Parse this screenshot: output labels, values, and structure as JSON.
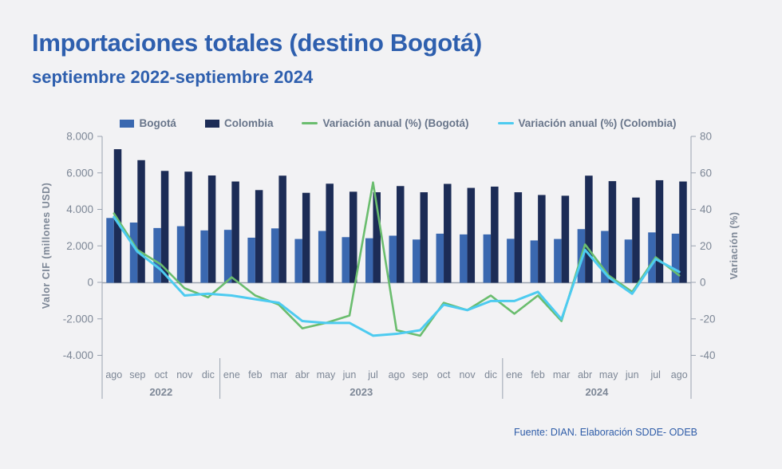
{
  "header": {
    "title": "Importaciones totales (destino Bogotá)",
    "subtitle": "septiembre 2022-septiembre  2024"
  },
  "footer": {
    "source": "Fuente: DIAN. Elaboración SDDE- ODEB"
  },
  "colors": {
    "background": "#F2F2F4",
    "title_blue": "#2E5FAE",
    "bogota_bar": "#3A68B0",
    "colombia_bar": "#1C2C56",
    "bogota_line": "#6ABD6E",
    "colombia_line": "#4DCBF0",
    "axis_gray": "#7D8796",
    "spine_gray": "#9AA3B0"
  },
  "chart_data": {
    "type": "bar",
    "subtype": "grouped bars with two percent lines (dual axis combo)",
    "categories": [
      "ago",
      "sep",
      "oct",
      "nov",
      "dic",
      "ene",
      "feb",
      "mar",
      "abr",
      "may",
      "jun",
      "jul",
      "ago",
      "sep",
      "oct",
      "nov",
      "dic",
      "ene",
      "feb",
      "mar",
      "abr",
      "may",
      "jun",
      "jul",
      "ago"
    ],
    "year_groups": [
      {
        "label": "2022",
        "start": 0,
        "count": 5
      },
      {
        "label": "2023",
        "start": 5,
        "count": 12
      },
      {
        "label": "2024",
        "start": 17,
        "count": 8
      }
    ],
    "bar_series": [
      {
        "name": "Bogotá",
        "color": "#3A68B0",
        "values": [
          3550,
          3300,
          3000,
          3100,
          2870,
          2900,
          2470,
          2980,
          2400,
          2840,
          2500,
          2440,
          2580,
          2370,
          2690,
          2650,
          2650,
          2410,
          2320,
          2400,
          2940,
          2840,
          2370,
          2760,
          2690
        ]
      },
      {
        "name": "Colombia",
        "color": "#1C2C56",
        "values": [
          7320,
          6720,
          6130,
          6090,
          5880,
          5550,
          5080,
          5870,
          4930,
          5430,
          4990,
          4960,
          5300,
          4960,
          5420,
          5200,
          5270,
          4960,
          4810,
          4770,
          5870,
          5570,
          4670,
          5620,
          5550
        ]
      }
    ],
    "line_series": [
      {
        "name": "Variación anual (%) (Bogotá)",
        "color": "#6ABD6E",
        "values": [
          38,
          18,
          10,
          -3,
          -8,
          3,
          -7,
          -12,
          -25,
          -22,
          -18,
          55,
          -26,
          -29,
          -11,
          -15,
          -7,
          -17,
          -7,
          -21,
          21,
          4,
          -5,
          14,
          4
        ]
      },
      {
        "name": "Variación anual (%) (Colombia)",
        "color": "#4DCBF0",
        "values": [
          36,
          17,
          7,
          -7,
          -6,
          -7,
          -9,
          -11,
          -21,
          -22,
          -22,
          -29,
          -28,
          -26,
          -12,
          -15,
          -10,
          -10,
          -5,
          -20,
          18,
          3,
          -6,
          13,
          6
        ]
      }
    ],
    "left_axis": {
      "label": "Valor CIF (millones USD)",
      "min": -4000,
      "max": 8000,
      "ticks": [
        "8.000",
        "6.000",
        "4.000",
        "2.000",
        "0",
        "-2.000",
        "-4.000"
      ]
    },
    "right_axis": {
      "label": "Variación (%)",
      "min": -40,
      "max": 80,
      "ticks": [
        "80",
        "60",
        "40",
        "20",
        "0",
        "-20",
        "-40"
      ]
    },
    "grid": "zero line only",
    "legend_position": "top center"
  }
}
